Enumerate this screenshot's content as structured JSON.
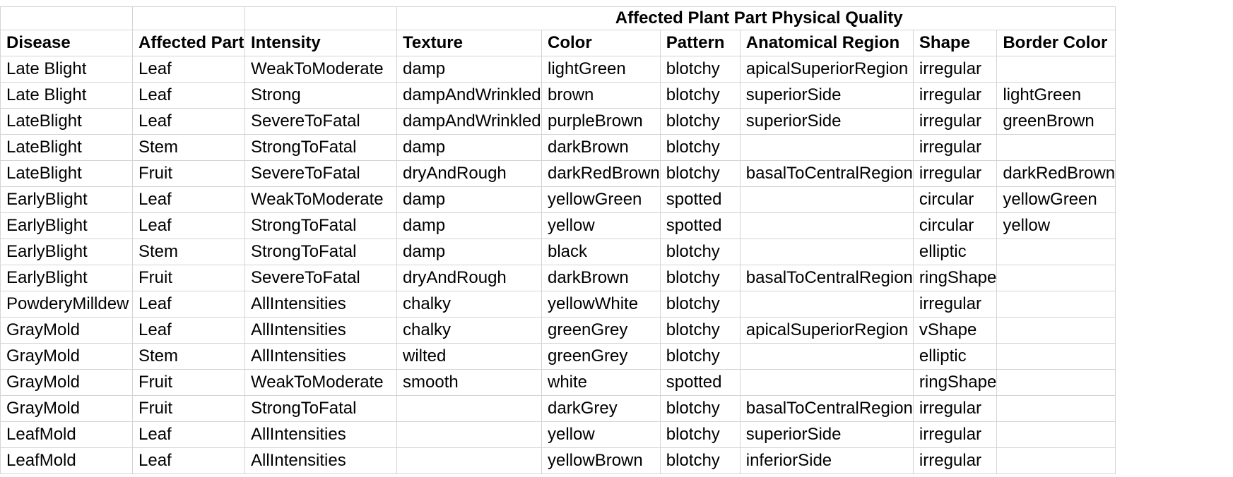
{
  "table": {
    "group_header": "Affected Plant Part Physical Quality",
    "columns": [
      "Disease",
      "Affected Part",
      "Intensity",
      "Texture",
      "Color",
      "Pattern",
      "Anatomical Region",
      "Shape",
      "Border Color"
    ],
    "rows": [
      [
        "Late Blight",
        "Leaf",
        "WeakToModerate",
        "damp",
        "lightGreen",
        "blotchy",
        "apicalSuperiorRegion",
        "irregular",
        ""
      ],
      [
        "Late Blight",
        "Leaf",
        "Strong",
        "dampAndWrinkled",
        "brown",
        "blotchy",
        "superiorSide",
        "irregular",
        "lightGreen"
      ],
      [
        "LateBlight",
        "Leaf",
        "SevereToFatal",
        "dampAndWrinkled",
        "purpleBrown",
        "blotchy",
        "superiorSide",
        "irregular",
        "greenBrown"
      ],
      [
        "LateBlight",
        "Stem",
        "StrongToFatal",
        "damp",
        "darkBrown",
        "blotchy",
        "",
        "irregular",
        ""
      ],
      [
        "LateBlight",
        "Fruit",
        "SevereToFatal",
        "dryAndRough",
        "darkRedBrown",
        "blotchy",
        "basalToCentralRegion",
        "irregular",
        "darkRedBrown"
      ],
      [
        "EarlyBlight",
        "Leaf",
        "WeakToModerate",
        "damp",
        "yellowGreen",
        "spotted",
        "",
        "circular",
        "yellowGreen"
      ],
      [
        "EarlyBlight",
        "Leaf",
        "StrongToFatal",
        "damp",
        "yellow",
        "spotted",
        "",
        "circular",
        "yellow"
      ],
      [
        "EarlyBlight",
        "Stem",
        "StrongToFatal",
        "damp",
        "black",
        "blotchy",
        "",
        "elliptic",
        ""
      ],
      [
        "EarlyBlight",
        "Fruit",
        "SevereToFatal",
        "dryAndRough",
        "darkBrown",
        "blotchy",
        "basalToCentralRegion",
        "ringShape",
        ""
      ],
      [
        "PowderyMilldew",
        "Leaf",
        "AllIntensities",
        "chalky",
        " yellowWhite",
        "blotchy",
        "",
        "irregular",
        ""
      ],
      [
        "GrayMold",
        "Leaf",
        "AllIntensities",
        "chalky",
        "greenGrey",
        "blotchy",
        "apicalSuperiorRegion",
        "vShape",
        ""
      ],
      [
        "GrayMold",
        "Stem",
        "AllIntensities",
        "wilted",
        "greenGrey",
        "blotchy",
        "",
        "elliptic",
        ""
      ],
      [
        "GrayMold",
        "Fruit",
        "WeakToModerate",
        "smooth",
        "white",
        "spotted",
        "",
        "ringShape",
        ""
      ],
      [
        "GrayMold",
        "Fruit",
        "StrongToFatal",
        "",
        "darkGrey",
        "blotchy",
        "basalToCentralRegion",
        "irregular",
        ""
      ],
      [
        "LeafMold",
        "Leaf",
        "AllIntensities",
        "",
        "yellow",
        "blotchy",
        "superiorSide",
        "irregular",
        ""
      ],
      [
        "LeafMold",
        "Leaf",
        "AllIntensities",
        "",
        "yellowBrown",
        "blotchy",
        "inferiorSide",
        "irregular",
        ""
      ]
    ]
  }
}
